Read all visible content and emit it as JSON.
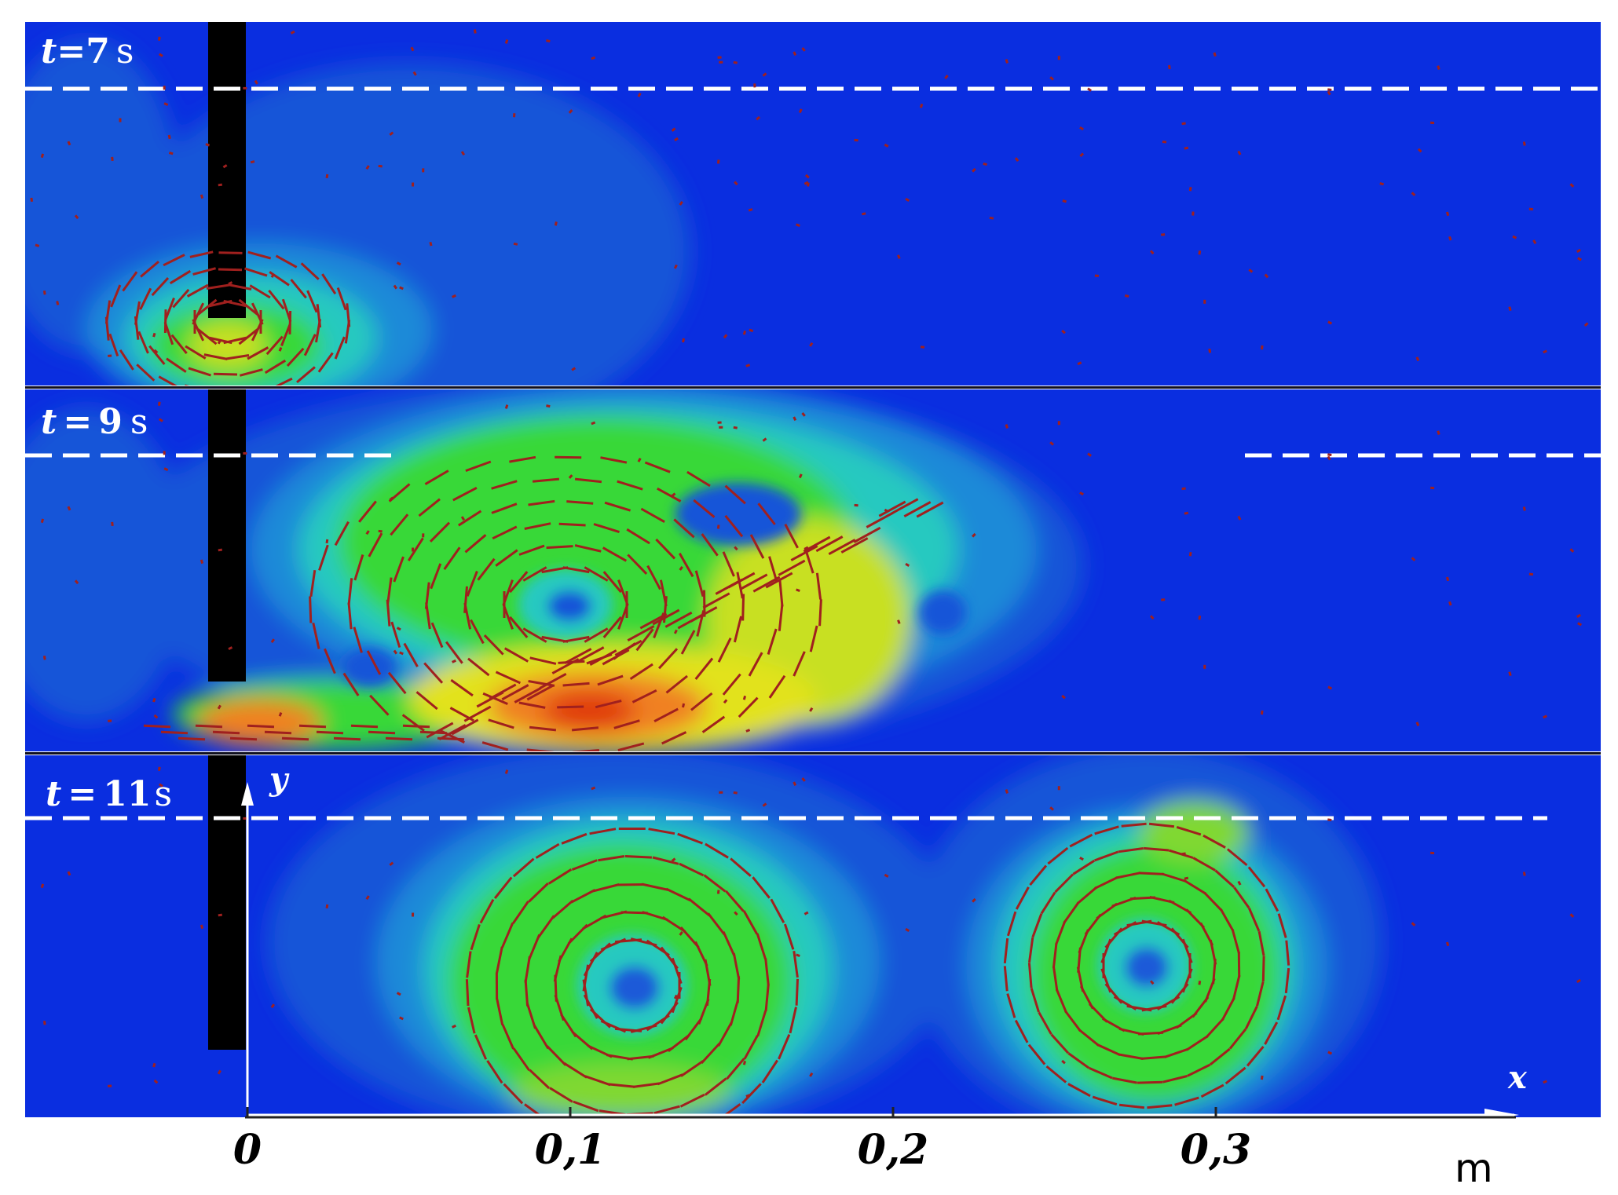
{
  "panels": [
    {
      "t_symbol": "t",
      "eq": "=",
      "value": "7",
      "unit": "s"
    },
    {
      "t_symbol": "t",
      "eq": "=",
      "value": "9",
      "unit": "s"
    },
    {
      "t_symbol": "t",
      "eq": "=",
      "value": "11",
      "unit": "s"
    }
  ],
  "axes": {
    "x_name": "x",
    "y_name": "y",
    "unit": "m",
    "ticks": [
      {
        "label": "0",
        "value": 0
      },
      {
        "label": "0,1",
        "value": 0.1
      },
      {
        "label": "0,2",
        "value": 0.2
      },
      {
        "label": "0,3",
        "value": 0.3
      }
    ]
  },
  "colors": {
    "background": "#0a2ee0",
    "mid_blue": "#1560e0",
    "cyan": "#25c9c0",
    "green": "#37d838",
    "yellow": "#e2e21a",
    "orange": "#f08020",
    "red": "#e03a10",
    "plate": "#000000",
    "vector": "#a0201e",
    "water_line": "#ffffff"
  }
}
